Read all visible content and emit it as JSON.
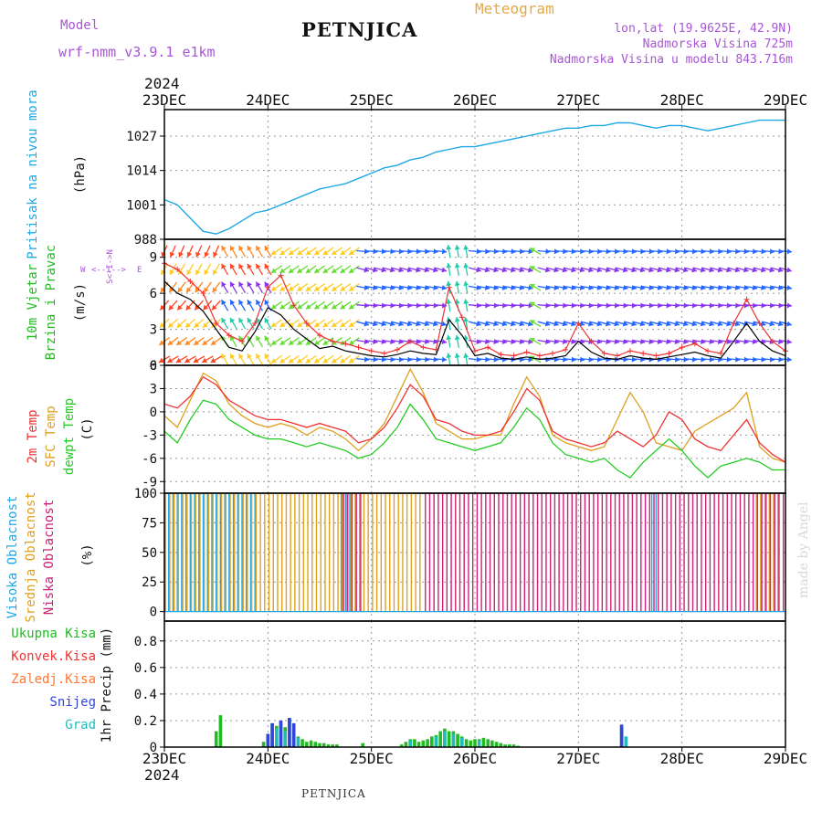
{
  "header": {
    "model_label": "Model",
    "model_name": "wrf-nmm_v3.9.1 e1km",
    "station": "PETNJICA",
    "meteogram": "Meteogram",
    "lonlat": "lon,lat (19.9625E, 42.9N)",
    "altitude": "Nadmorska Visina 725m",
    "model_altitude": "Nadmorska Visina u modelu 843.716m",
    "footer_station": "PETNJICA",
    "made_by": "made by Angel"
  },
  "colors": {
    "pressure": "#1ea8e6",
    "wind_speed": "#000000",
    "wind_gust": "#ee3333",
    "temp_2m": "#ee3333",
    "temp_sfc": "#e0a020",
    "dewpoint": "#22cc22",
    "cloud_high": "#1ea8e6",
    "cloud_mid": "#e0a020",
    "cloud_low": "#cc2277",
    "precip_total": "#22bb22",
    "precip_snow": "#3344dd",
    "precip_grad": "#22bbbb"
  },
  "chart_data": [
    {
      "type": "line",
      "panel": "pressure",
      "ylabel_left": "Pritisak na nivou mora",
      "ylabel_unit": "(hPa)",
      "year": "2024",
      "x_ticks": [
        "23DEC",
        "24DEC",
        "25DEC",
        "26DEC",
        "27DEC",
        "28DEC",
        "29DEC"
      ],
      "y_ticks": [
        "988",
        "1001",
        "1014",
        "1027"
      ],
      "ylim": [
        988,
        1037
      ],
      "x_hours": [
        0,
        3,
        6,
        9,
        12,
        15,
        18,
        21,
        24,
        27,
        30,
        33,
        36,
        39,
        42,
        45,
        48,
        51,
        54,
        57,
        60,
        63,
        66,
        69,
        72,
        75,
        78,
        81,
        84,
        87,
        90,
        93,
        96,
        99,
        102,
        105,
        108,
        111,
        114,
        117,
        120,
        123,
        126,
        129,
        132,
        135,
        138,
        141,
        144
      ],
      "series": [
        {
          "values": [
            1003,
            1001,
            996,
            991,
            990,
            992,
            995,
            998,
            999,
            1001,
            1003,
            1005,
            1007,
            1008,
            1009,
            1011,
            1013,
            1015,
            1016,
            1018,
            1019,
            1021,
            1022,
            1023,
            1023,
            1024,
            1025,
            1026,
            1027,
            1028,
            1029,
            1030,
            1030,
            1031,
            1031,
            1032,
            1032,
            1031,
            1030,
            1031,
            1031,
            1030,
            1029,
            1030,
            1031,
            1032,
            1033,
            1033,
            1033
          ]
        }
      ]
    },
    {
      "type": "line",
      "panel": "wind",
      "ylabel_left": [
        "10m Vjetar",
        "Brzina i Pravac"
      ],
      "ylabel_unit": "(m/s)",
      "compass": [
        "W",
        "<--I-->",
        "E",
        "S<-I->N"
      ],
      "y_ticks": [
        "0",
        "3",
        "6",
        "9"
      ],
      "ylim": [
        0,
        10.5
      ],
      "x_hours": [
        0,
        3,
        6,
        9,
        12,
        15,
        18,
        21,
        24,
        27,
        30,
        33,
        36,
        39,
        42,
        45,
        48,
        51,
        54,
        57,
        60,
        63,
        66,
        69,
        72,
        75,
        78,
        81,
        84,
        87,
        90,
        93,
        96,
        99,
        102,
        105,
        108,
        111,
        114,
        117,
        120,
        123,
        126,
        129,
        132,
        135,
        138,
        141,
        144
      ],
      "series": [
        {
          "role": "speed",
          "values": [
            7.0,
            6.0,
            5.5,
            4.5,
            3.0,
            1.5,
            1.2,
            2.8,
            4.8,
            4.2,
            3.0,
            2.2,
            1.4,
            1.6,
            1.2,
            1.0,
            0.8,
            0.7,
            0.9,
            1.2,
            1.0,
            0.9,
            3.8,
            2.5,
            0.8,
            1.0,
            0.6,
            0.5,
            0.7,
            0.5,
            0.6,
            0.8,
            2.0,
            1.1,
            0.6,
            0.5,
            0.8,
            0.6,
            0.5,
            0.7,
            0.9,
            1.1,
            0.8,
            0.6,
            2.0,
            3.5,
            2.0,
            1.2,
            0.8
          ]
        },
        {
          "role": "gust",
          "values": [
            8.5,
            8.0,
            7.0,
            6.0,
            3.5,
            2.5,
            2.0,
            3.5,
            6.5,
            7.5,
            5.0,
            3.5,
            2.5,
            2.0,
            1.8,
            1.5,
            1.2,
            1.0,
            1.3,
            2.0,
            1.5,
            1.3,
            6.5,
            4.0,
            1.2,
            1.5,
            0.9,
            0.8,
            1.1,
            0.8,
            1.0,
            1.3,
            3.5,
            2.0,
            1.0,
            0.8,
            1.2,
            1.0,
            0.8,
            1.0,
            1.5,
            1.8,
            1.2,
            1.0,
            3.5,
            5.5,
            3.5,
            2.0,
            1.2
          ]
        }
      ]
    },
    {
      "type": "line",
      "panel": "temperature",
      "ylabel_left": [
        "2m Temp",
        "SFC Temp",
        "dewpt Temp"
      ],
      "ylabel_unit": "(C)",
      "y_ticks": [
        "-9",
        "-6",
        "-3",
        "0",
        "3",
        "6"
      ],
      "ylim": [
        -10.5,
        6
      ],
      "x_hours": [
        0,
        3,
        6,
        9,
        12,
        15,
        18,
        21,
        24,
        27,
        30,
        33,
        36,
        39,
        42,
        45,
        48,
        51,
        54,
        57,
        60,
        63,
        66,
        69,
        72,
        75,
        78,
        81,
        84,
        87,
        90,
        93,
        96,
        99,
        102,
        105,
        108,
        111,
        114,
        117,
        120,
        123,
        126,
        129,
        132,
        135,
        138,
        141,
        144
      ],
      "series": [
        {
          "name": "2m Temp",
          "values": [
            1.0,
            0.5,
            2.0,
            4.5,
            3.5,
            1.5,
            0.5,
            -0.5,
            -1.0,
            -1.0,
            -1.5,
            -2.0,
            -1.5,
            -2.0,
            -2.5,
            -4.0,
            -3.5,
            -2.0,
            0.5,
            3.5,
            2.0,
            -1.0,
            -1.5,
            -2.5,
            -3.0,
            -3.0,
            -2.5,
            0.0,
            3.0,
            1.5,
            -2.5,
            -3.5,
            -4.0,
            -4.5,
            -4.0,
            -2.5,
            -3.5,
            -4.5,
            -3.0,
            0.0,
            -1.0,
            -3.5,
            -4.5,
            -5.0,
            -3.0,
            -1.0,
            -4.0,
            -5.5,
            -6.5
          ]
        },
        {
          "name": "SFC Temp",
          "values": [
            -0.5,
            -2.0,
            1.5,
            5.0,
            4.0,
            1.0,
            -0.5,
            -1.5,
            -2.0,
            -1.5,
            -2.0,
            -3.0,
            -2.0,
            -2.5,
            -3.5,
            -5.0,
            -3.5,
            -1.5,
            2.0,
            5.5,
            2.5,
            -1.5,
            -2.5,
            -3.5,
            -3.5,
            -3.0,
            -3.0,
            1.0,
            4.5,
            2.0,
            -3.0,
            -4.0,
            -4.5,
            -5.0,
            -4.5,
            -1.0,
            2.5,
            0.0,
            -4.0,
            -4.5,
            -5.0,
            -2.5,
            -1.5,
            -0.5,
            0.5,
            2.5,
            -4.5,
            -6.0,
            -6.5
          ]
        },
        {
          "name": "dewpt Temp",
          "values": [
            -2.5,
            -4.0,
            -1.0,
            1.5,
            1.0,
            -1.0,
            -2.0,
            -3.0,
            -3.5,
            -3.5,
            -4.0,
            -4.5,
            -4.0,
            -4.5,
            -5.0,
            -6.0,
            -5.5,
            -4.0,
            -2.0,
            1.0,
            -1.0,
            -3.5,
            -4.0,
            -4.5,
            -5.0,
            -4.5,
            -4.0,
            -2.0,
            0.5,
            -1.0,
            -4.0,
            -5.5,
            -6.0,
            -6.5,
            -6.0,
            -7.5,
            -8.5,
            -6.5,
            -5.0,
            -3.5,
            -5.0,
            -7.0,
            -8.5,
            -7.0,
            -6.5,
            -6.0,
            -6.5,
            -7.5,
            -7.5
          ]
        }
      ]
    },
    {
      "type": "bar",
      "panel": "clouds",
      "ylabel_left": [
        "Visoka Oblacnost",
        "Srednja Oblacnost",
        "Niska Oblacnost"
      ],
      "ylabel_unit": "(%)",
      "y_ticks": [
        "0",
        "25",
        "50",
        "75",
        "100"
      ],
      "ylim": [
        0,
        100
      ],
      "bar_every_hours": 1,
      "series": [
        {
          "name": "Visoka Oblacnost",
          "segments": [
            {
              "from": 0,
              "to": 22,
              "value": 100
            },
            {
              "from": 41,
              "to": 44,
              "value": 100
            },
            {
              "from": 113,
              "to": 115,
              "value": 100
            }
          ]
        },
        {
          "name": "Srednja Oblacnost",
          "segments": [
            {
              "from": 0,
              "to": 22,
              "value": 100
            },
            {
              "from": 22,
              "to": 60,
              "value": 100
            },
            {
              "from": 137,
              "to": 143,
              "value": 100
            }
          ]
        },
        {
          "name": "Niska Oblacnost",
          "segments": [
            {
              "from": 41,
              "to": 46,
              "value": 100
            },
            {
              "from": 60,
              "to": 144,
              "value": 100
            }
          ]
        }
      ]
    },
    {
      "type": "bar",
      "panel": "precip",
      "ylabel_left": [
        "Ukupna Kisa",
        "Konvek.Kisa",
        "Zaledj.Kisa",
        "Snijeg",
        "Grad"
      ],
      "ylabel_unit": "1hr Precip (mm)",
      "year": "2024",
      "x_ticks": [
        "23DEC",
        "24DEC",
        "25DEC",
        "26DEC",
        "27DEC",
        "28DEC",
        "29DEC"
      ],
      "y_ticks": [
        "0",
        "0.2",
        "0.4",
        "0.6",
        "0.8"
      ],
      "ylim": [
        0,
        0.95
      ],
      "series": [
        {
          "name": "Ukupna Kisa",
          "points": [
            [
              12,
              0.12
            ],
            [
              13,
              0.24
            ],
            [
              23,
              0.04
            ],
            [
              24,
              0.1
            ],
            [
              25,
              0.18
            ],
            [
              26,
              0.16
            ],
            [
              27,
              0.2
            ],
            [
              28,
              0.15
            ],
            [
              29,
              0.22
            ],
            [
              30,
              0.18
            ],
            [
              31,
              0.08
            ],
            [
              32,
              0.06
            ],
            [
              33,
              0.04
            ],
            [
              34,
              0.05
            ],
            [
              35,
              0.04
            ],
            [
              36,
              0.03
            ],
            [
              37,
              0.03
            ],
            [
              38,
              0.02
            ],
            [
              39,
              0.02
            ],
            [
              40,
              0.02
            ],
            [
              46,
              0.03
            ],
            [
              55,
              0.02
            ],
            [
              56,
              0.04
            ],
            [
              57,
              0.06
            ],
            [
              58,
              0.06
            ],
            [
              59,
              0.04
            ],
            [
              60,
              0.05
            ],
            [
              61,
              0.06
            ],
            [
              62,
              0.08
            ],
            [
              63,
              0.09
            ],
            [
              64,
              0.12
            ],
            [
              65,
              0.14
            ],
            [
              66,
              0.12
            ],
            [
              67,
              0.12
            ],
            [
              68,
              0.1
            ],
            [
              69,
              0.08
            ],
            [
              70,
              0.06
            ],
            [
              71,
              0.05
            ],
            [
              72,
              0.06
            ],
            [
              73,
              0.06
            ],
            [
              74,
              0.07
            ],
            [
              75,
              0.06
            ],
            [
              76,
              0.05
            ],
            [
              77,
              0.04
            ],
            [
              78,
              0.03
            ],
            [
              79,
              0.02
            ],
            [
              80,
              0.02
            ],
            [
              81,
              0.02
            ],
            [
              82,
              0.01
            ],
            [
              106,
              0.16
            ],
            [
              107,
              0.08
            ]
          ]
        },
        {
          "name": "Snijeg",
          "points": [
            [
              24,
              0.1
            ],
            [
              25,
              0.18
            ],
            [
              27,
              0.2
            ],
            [
              29,
              0.22
            ],
            [
              30,
              0.18
            ],
            [
              106,
              0.17
            ]
          ]
        },
        {
          "name": "Grad",
          "points": [
            [
              26,
              0.14
            ],
            [
              28,
              0.12
            ],
            [
              31,
              0.07
            ],
            [
              57,
              0.05
            ],
            [
              63,
              0.08
            ],
            [
              65,
              0.12
            ],
            [
              67,
              0.1
            ],
            [
              69,
              0.07
            ],
            [
              73,
              0.05
            ],
            [
              107,
              0.08
            ]
          ]
        }
      ]
    }
  ]
}
